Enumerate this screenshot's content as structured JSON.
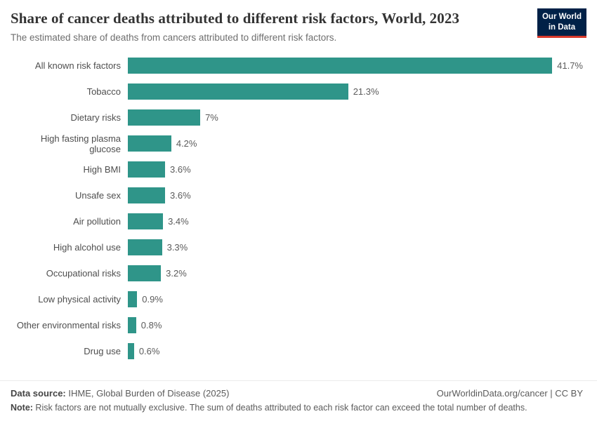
{
  "header": {
    "title": "Share of cancer deaths attributed to different risk factors, World, 2023",
    "subtitle": "The estimated share of deaths from cancers attributed to different risk factors.",
    "logo": {
      "line1": "Our World",
      "line2": "in Data"
    }
  },
  "chart_data": {
    "type": "bar",
    "orientation": "horizontal",
    "title": "Share of cancer deaths attributed to different risk factors, World, 2023",
    "categories": [
      "All known risk factors",
      "Tobacco",
      "Dietary risks",
      "High fasting plasma glucose",
      "High BMI",
      "Unsafe sex",
      "Air pollution",
      "High alcohol use",
      "Occupational risks",
      "Low physical activity",
      "Other environmental risks",
      "Drug use"
    ],
    "values": [
      41.7,
      21.3,
      7,
      4.2,
      3.6,
      3.6,
      3.4,
      3.3,
      3.2,
      0.9,
      0.8,
      0.6
    ],
    "value_labels": [
      "41.7%",
      "21.3%",
      "7%",
      "4.2%",
      "3.6%",
      "3.6%",
      "3.4%",
      "3.3%",
      "3.2%",
      "0.9%",
      "0.8%",
      "0.6%"
    ],
    "bar_color": "#2f9589",
    "xlim": [
      0,
      44
    ],
    "grid": false,
    "legend": "none"
  },
  "colors": {
    "bar": "#2f9589",
    "logo_bg": "#002147",
    "logo_accent": "#d7392b"
  },
  "footer": {
    "datasource_label": "Data source:",
    "datasource_text": " IHME, Global Burden of Disease (2025)",
    "link_text": "OurWorldinData.org/cancer | CC BY",
    "note_label": "Note:",
    "note_text": " Risk factors are not mutually exclusive. The sum of deaths attributed to each risk factor can exceed the total number of deaths."
  }
}
